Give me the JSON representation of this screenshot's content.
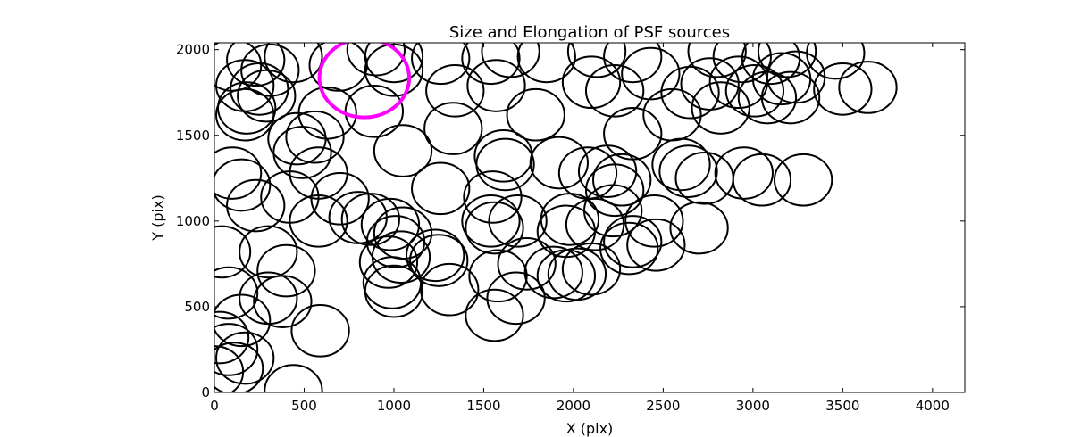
{
  "chart_data": {
    "type": "scatter",
    "title": "Size and Elongation of PSF sources",
    "xlabel": "X (pix)",
    "ylabel": "Y (pix)",
    "xlim": [
      0,
      4180
    ],
    "ylim": [
      0,
      2040
    ],
    "xticks": [
      "0",
      "500",
      "1000",
      "1500",
      "2000",
      "2500",
      "3000",
      "3500",
      "4000"
    ],
    "xtick_values": [
      0,
      500,
      1000,
      1500,
      2000,
      2500,
      3000,
      3500,
      4000
    ],
    "yticks": [
      "0",
      "500",
      "1000",
      "1500",
      "2000"
    ],
    "ytick_values": [
      0,
      500,
      1000,
      1500,
      2000
    ],
    "grid": false,
    "colors": {
      "sources": "#000000",
      "highlight": "#ff00ff"
    },
    "highlight": {
      "x": 835,
      "y": 1835,
      "rx": 250,
      "ry": 230
    },
    "sources": [
      {
        "x": 100,
        "y": 1910,
        "rx": 160,
        "ry": 150
      },
      {
        "x": 230,
        "y": 1940,
        "rx": 160,
        "ry": 150
      },
      {
        "x": 310,
        "y": 1880,
        "rx": 160,
        "ry": 150
      },
      {
        "x": 440,
        "y": 1960,
        "rx": 160,
        "ry": 150
      },
      {
        "x": 690,
        "y": 1910,
        "rx": 160,
        "ry": 150
      },
      {
        "x": 900,
        "y": 2000,
        "rx": 160,
        "ry": 150
      },
      {
        "x": 1000,
        "y": 1960,
        "rx": 160,
        "ry": 150
      },
      {
        "x": 1000,
        "y": 1880,
        "rx": 160,
        "ry": 150
      },
      {
        "x": 1260,
        "y": 1950,
        "rx": 160,
        "ry": 150
      },
      {
        "x": 1540,
        "y": 1950,
        "rx": 160,
        "ry": 150
      },
      {
        "x": 1650,
        "y": 1990,
        "rx": 160,
        "ry": 150
      },
      {
        "x": 1850,
        "y": 1960,
        "rx": 160,
        "ry": 150
      },
      {
        "x": 2130,
        "y": 1990,
        "rx": 160,
        "ry": 150
      },
      {
        "x": 2330,
        "y": 1960,
        "rx": 160,
        "ry": 150
      },
      {
        "x": 2800,
        "y": 1990,
        "rx": 160,
        "ry": 150
      },
      {
        "x": 2940,
        "y": 1960,
        "rx": 160,
        "ry": 150
      },
      {
        "x": 3100,
        "y": 1950,
        "rx": 160,
        "ry": 150
      },
      {
        "x": 3190,
        "y": 1990,
        "rx": 160,
        "ry": 150
      },
      {
        "x": 3460,
        "y": 1980,
        "rx": 160,
        "ry": 150
      },
      {
        "x": 1340,
        "y": 1760,
        "rx": 160,
        "ry": 150
      },
      {
        "x": 1570,
        "y": 1790,
        "rx": 160,
        "ry": 150
      },
      {
        "x": 2100,
        "y": 1810,
        "rx": 160,
        "ry": 150
      },
      {
        "x": 2230,
        "y": 1760,
        "rx": 160,
        "ry": 150
      },
      {
        "x": 2430,
        "y": 1860,
        "rx": 160,
        "ry": 150
      },
      {
        "x": 2650,
        "y": 1750,
        "rx": 160,
        "ry": 150
      },
      {
        "x": 2760,
        "y": 1800,
        "rx": 160,
        "ry": 150
      },
      {
        "x": 2920,
        "y": 1810,
        "rx": 160,
        "ry": 150
      },
      {
        "x": 3010,
        "y": 1760,
        "rx": 160,
        "ry": 150
      },
      {
        "x": 3160,
        "y": 1830,
        "rx": 160,
        "ry": 150
      },
      {
        "x": 3240,
        "y": 1840,
        "rx": 160,
        "ry": 150
      },
      {
        "x": 3500,
        "y": 1770,
        "rx": 160,
        "ry": 150
      },
      {
        "x": 3640,
        "y": 1780,
        "rx": 160,
        "ry": 150
      },
      {
        "x": 170,
        "y": 1790,
        "rx": 160,
        "ry": 150
      },
      {
        "x": 250,
        "y": 1770,
        "rx": 160,
        "ry": 150
      },
      {
        "x": 290,
        "y": 1730,
        "rx": 160,
        "ry": 150
      },
      {
        "x": 180,
        "y": 1660,
        "rx": 160,
        "ry": 150
      },
      {
        "x": 170,
        "y": 1620,
        "rx": 160,
        "ry": 150
      },
      {
        "x": 630,
        "y": 1630,
        "rx": 160,
        "ry": 150
      },
      {
        "x": 890,
        "y": 1640,
        "rx": 160,
        "ry": 150
      },
      {
        "x": 1790,
        "y": 1620,
        "rx": 160,
        "ry": 150
      },
      {
        "x": 2330,
        "y": 1510,
        "rx": 160,
        "ry": 150
      },
      {
        "x": 2550,
        "y": 1620,
        "rx": 160,
        "ry": 150
      },
      {
        "x": 2820,
        "y": 1660,
        "rx": 160,
        "ry": 150
      },
      {
        "x": 3080,
        "y": 1720,
        "rx": 160,
        "ry": 150
      },
      {
        "x": 3210,
        "y": 1720,
        "rx": 160,
        "ry": 150
      },
      {
        "x": 1330,
        "y": 1540,
        "rx": 160,
        "ry": 150
      },
      {
        "x": 1050,
        "y": 1410,
        "rx": 160,
        "ry": 150
      },
      {
        "x": 460,
        "y": 1480,
        "rx": 160,
        "ry": 150
      },
      {
        "x": 560,
        "y": 1490,
        "rx": 160,
        "ry": 150
      },
      {
        "x": 490,
        "y": 1400,
        "rx": 160,
        "ry": 150
      },
      {
        "x": 580,
        "y": 1280,
        "rx": 160,
        "ry": 150
      },
      {
        "x": 1610,
        "y": 1380,
        "rx": 160,
        "ry": 150
      },
      {
        "x": 1620,
        "y": 1330,
        "rx": 160,
        "ry": 150
      },
      {
        "x": 1920,
        "y": 1340,
        "rx": 160,
        "ry": 150
      },
      {
        "x": 100,
        "y": 1280,
        "rx": 160,
        "ry": 150
      },
      {
        "x": 150,
        "y": 1210,
        "rx": 160,
        "ry": 150
      },
      {
        "x": 1260,
        "y": 1190,
        "rx": 160,
        "ry": 150
      },
      {
        "x": 1550,
        "y": 1140,
        "rx": 160,
        "ry": 150
      },
      {
        "x": 2080,
        "y": 1280,
        "rx": 160,
        "ry": 150
      },
      {
        "x": 2190,
        "y": 1290,
        "rx": 160,
        "ry": 150
      },
      {
        "x": 2270,
        "y": 1240,
        "rx": 160,
        "ry": 150
      },
      {
        "x": 2230,
        "y": 1180,
        "rx": 160,
        "ry": 150
      },
      {
        "x": 2600,
        "y": 1330,
        "rx": 160,
        "ry": 150
      },
      {
        "x": 2640,
        "y": 1290,
        "rx": 160,
        "ry": 150
      },
      {
        "x": 2730,
        "y": 1250,
        "rx": 160,
        "ry": 150
      },
      {
        "x": 2950,
        "y": 1280,
        "rx": 160,
        "ry": 150
      },
      {
        "x": 3050,
        "y": 1240,
        "rx": 160,
        "ry": 150
      },
      {
        "x": 3280,
        "y": 1240,
        "rx": 160,
        "ry": 150
      },
      {
        "x": 230,
        "y": 1090,
        "rx": 160,
        "ry": 150
      },
      {
        "x": 420,
        "y": 1140,
        "rx": 160,
        "ry": 150
      },
      {
        "x": 700,
        "y": 1130,
        "rx": 160,
        "ry": 150
      },
      {
        "x": 580,
        "y": 1000,
        "rx": 160,
        "ry": 150
      },
      {
        "x": 800,
        "y": 1020,
        "rx": 160,
        "ry": 150
      },
      {
        "x": 870,
        "y": 1010,
        "rx": 160,
        "ry": 150
      },
      {
        "x": 980,
        "y": 980,
        "rx": 160,
        "ry": 150
      },
      {
        "x": 1050,
        "y": 930,
        "rx": 160,
        "ry": 150
      },
      {
        "x": 1010,
        "y": 880,
        "rx": 160,
        "ry": 150
      },
      {
        "x": 1540,
        "y": 1000,
        "rx": 160,
        "ry": 150
      },
      {
        "x": 1560,
        "y": 960,
        "rx": 160,
        "ry": 150
      },
      {
        "x": 1690,
        "y": 1000,
        "rx": 160,
        "ry": 150
      },
      {
        "x": 1980,
        "y": 1010,
        "rx": 160,
        "ry": 150
      },
      {
        "x": 1960,
        "y": 940,
        "rx": 160,
        "ry": 150
      },
      {
        "x": 2120,
        "y": 980,
        "rx": 160,
        "ry": 150
      },
      {
        "x": 2220,
        "y": 1060,
        "rx": 160,
        "ry": 150
      },
      {
        "x": 2450,
        "y": 1000,
        "rx": 160,
        "ry": 150
      },
      {
        "x": 2700,
        "y": 960,
        "rx": 160,
        "ry": 150
      },
      {
        "x": 40,
        "y": 820,
        "rx": 160,
        "ry": 150
      },
      {
        "x": 300,
        "y": 820,
        "rx": 160,
        "ry": 150
      },
      {
        "x": 400,
        "y": 710,
        "rx": 160,
        "ry": 150
      },
      {
        "x": 970,
        "y": 760,
        "rx": 160,
        "ry": 150
      },
      {
        "x": 1040,
        "y": 790,
        "rx": 160,
        "ry": 150
      },
      {
        "x": 1230,
        "y": 800,
        "rx": 160,
        "ry": 150
      },
      {
        "x": 1250,
        "y": 770,
        "rx": 160,
        "ry": 150
      },
      {
        "x": 1740,
        "y": 750,
        "rx": 160,
        "ry": 150
      },
      {
        "x": 1890,
        "y": 700,
        "rx": 160,
        "ry": 150
      },
      {
        "x": 1960,
        "y": 680,
        "rx": 160,
        "ry": 150
      },
      {
        "x": 2020,
        "y": 690,
        "rx": 160,
        "ry": 150
      },
      {
        "x": 2100,
        "y": 720,
        "rx": 160,
        "ry": 150
      },
      {
        "x": 2310,
        "y": 840,
        "rx": 160,
        "ry": 150
      },
      {
        "x": 2330,
        "y": 880,
        "rx": 160,
        "ry": 150
      },
      {
        "x": 2460,
        "y": 860,
        "rx": 160,
        "ry": 150
      },
      {
        "x": 990,
        "y": 640,
        "rx": 160,
        "ry": 150
      },
      {
        "x": 1000,
        "y": 590,
        "rx": 160,
        "ry": 150
      },
      {
        "x": 1310,
        "y": 600,
        "rx": 160,
        "ry": 150
      },
      {
        "x": 1580,
        "y": 680,
        "rx": 160,
        "ry": 150
      },
      {
        "x": 1560,
        "y": 450,
        "rx": 160,
        "ry": 150
      },
      {
        "x": 1680,
        "y": 550,
        "rx": 160,
        "ry": 150
      },
      {
        "x": 80,
        "y": 580,
        "rx": 160,
        "ry": 150
      },
      {
        "x": 300,
        "y": 550,
        "rx": 160,
        "ry": 150
      },
      {
        "x": 380,
        "y": 530,
        "rx": 160,
        "ry": 150
      },
      {
        "x": 590,
        "y": 360,
        "rx": 160,
        "ry": 150
      },
      {
        "x": 150,
        "y": 420,
        "rx": 160,
        "ry": 150
      },
      {
        "x": 30,
        "y": 320,
        "rx": 160,
        "ry": 150
      },
      {
        "x": 80,
        "y": 250,
        "rx": 160,
        "ry": 150
      },
      {
        "x": 170,
        "y": 200,
        "rx": 160,
        "ry": 150
      },
      {
        "x": 110,
        "y": 140,
        "rx": 160,
        "ry": 150
      },
      {
        "x": 0,
        "y": 120,
        "rx": 160,
        "ry": 150
      },
      {
        "x": 440,
        "y": 10,
        "rx": 160,
        "ry": 150
      }
    ]
  }
}
